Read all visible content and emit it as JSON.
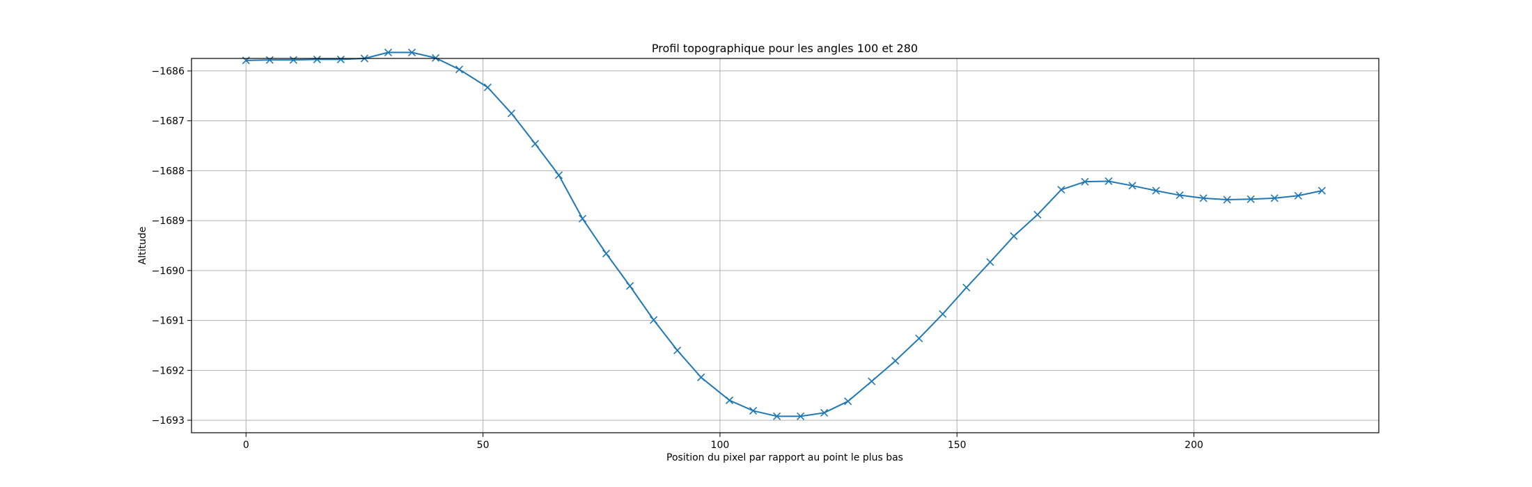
{
  "chart_data": {
    "type": "line",
    "title": "Profil topographique pour les angles 100 et 280",
    "xlabel": "Position du pixel par rapport au point le plus bas",
    "ylabel": "Altitude",
    "xlim": [
      -11.5,
      239
    ],
    "ylim": [
      -1693.25,
      -1685.75
    ],
    "x_ticks": [
      0,
      50,
      100,
      150,
      200
    ],
    "x_tick_labels": [
      "0",
      "50",
      "100",
      "150",
      "200"
    ],
    "y_ticks": [
      -1686,
      -1687,
      -1688,
      -1689,
      -1690,
      -1691,
      -1692,
      -1693
    ],
    "y_tick_labels": [
      "−1686",
      "−1687",
      "−1688",
      "−1689",
      "−1690",
      "−1691",
      "−1692",
      "−1693"
    ],
    "grid": true,
    "series": [
      {
        "marker": "x",
        "color": "#1f77b4",
        "x": [
          0,
          5,
          10,
          15,
          20,
          25,
          30,
          35,
          40,
          45,
          51,
          56,
          61,
          66,
          71,
          76,
          81,
          86,
          91,
          96,
          102,
          107,
          112,
          117,
          122,
          127,
          132,
          137,
          142,
          147,
          152,
          157,
          162,
          167,
          172,
          177,
          182,
          187,
          192,
          197,
          202,
          207,
          212,
          217,
          222,
          227
        ],
        "y": [
          -1685.79,
          -1685.78,
          -1685.78,
          -1685.77,
          -1685.77,
          -1685.75,
          -1685.63,
          -1685.63,
          -1685.74,
          -1685.97,
          -1686.33,
          -1686.85,
          -1687.46,
          -1688.09,
          -1688.96,
          -1689.66,
          -1690.31,
          -1690.99,
          -1691.6,
          -1692.14,
          -1692.6,
          -1692.81,
          -1692.92,
          -1692.92,
          -1692.85,
          -1692.62,
          -1692.22,
          -1691.81,
          -1691.36,
          -1690.87,
          -1690.34,
          -1689.83,
          -1689.31,
          -1688.88,
          -1688.38,
          -1688.22,
          -1688.21,
          -1688.3,
          -1688.4,
          -1688.49,
          -1688.55,
          -1688.58,
          -1688.57,
          -1688.55,
          -1688.5,
          -1688.4
        ]
      }
    ]
  }
}
